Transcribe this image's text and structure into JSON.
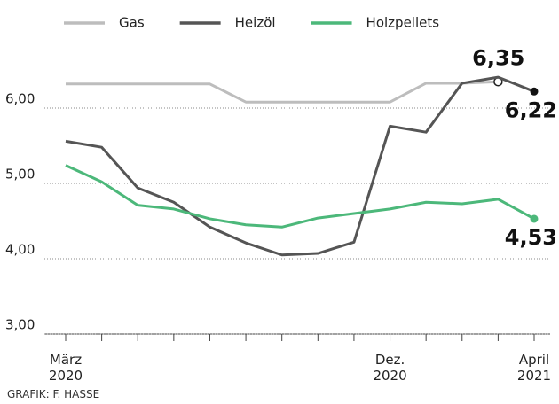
{
  "chart_data": {
    "type": "line",
    "categories": [
      "März 2020",
      null,
      null,
      null,
      null,
      null,
      null,
      null,
      null,
      "Dez. 2020",
      null,
      null,
      null,
      "April 2021"
    ],
    "series": [
      {
        "name": "Gas",
        "color": "#bdbdbd",
        "values": [
          6.32,
          6.32,
          6.32,
          6.32,
          6.32,
          6.08,
          6.08,
          6.08,
          6.08,
          6.08,
          6.33,
          6.33,
          6.35,
          null
        ],
        "value_labels": [
          null,
          null,
          null,
          null,
          null,
          null,
          null,
          null,
          null,
          null,
          null,
          null,
          "6,35",
          null
        ]
      },
      {
        "name": "Heizöl",
        "color": "#555555",
        "values": [
          5.56,
          5.48,
          4.94,
          4.75,
          4.42,
          4.21,
          4.05,
          4.07,
          4.22,
          5.76,
          5.68,
          6.33,
          6.41,
          6.22
        ],
        "value_labels": [
          null,
          null,
          null,
          null,
          null,
          null,
          null,
          null,
          null,
          null,
          null,
          null,
          null,
          "6,22"
        ]
      },
      {
        "name": "Holzpellets",
        "color": "#4cb87a",
        "values": [
          5.24,
          5.02,
          4.71,
          4.66,
          4.53,
          4.45,
          4.42,
          4.54,
          4.6,
          4.66,
          4.75,
          4.73,
          4.79,
          4.53
        ],
        "value_labels": [
          null,
          null,
          null,
          null,
          null,
          null,
          null,
          null,
          null,
          null,
          null,
          null,
          null,
          "4,53"
        ]
      }
    ],
    "ylim": [
      3,
      6.5
    ],
    "yticks": [
      {
        "value": 3,
        "label": "3,00"
      },
      {
        "value": 4,
        "label": "4,00"
      },
      {
        "value": 5,
        "label": "5,00"
      },
      {
        "value": 6,
        "label": "6,00"
      }
    ],
    "grid": true,
    "source": "GRAFIK: F. HASSE"
  }
}
